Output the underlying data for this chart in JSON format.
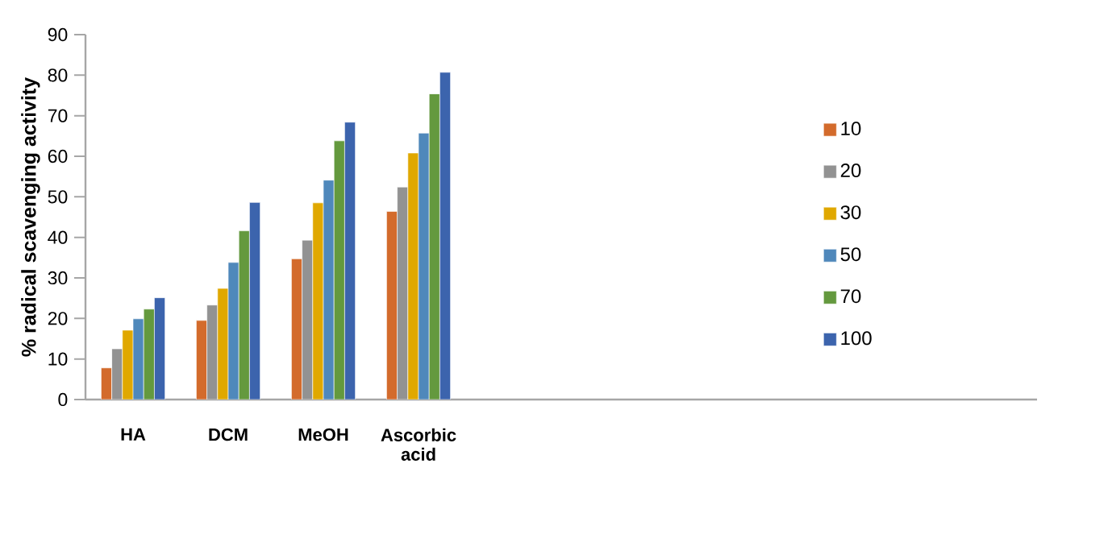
{
  "chart_data": {
    "type": "bar",
    "ylabel": "% radical scavenging activity",
    "categories": [
      "HA",
      "DCM",
      "MeOH",
      "Ascorbic acid",
      null,
      null,
      null,
      null,
      null,
      null
    ],
    "series": [
      {
        "name": "10",
        "color": "#d36b2c",
        "values": [
          7.8,
          19.5,
          34.7,
          46.4,
          null,
          null,
          null,
          null,
          null,
          null
        ]
      },
      {
        "name": "20",
        "color": "#929292",
        "values": [
          12.5,
          23.3,
          39.3,
          52.4,
          null,
          null,
          null,
          null,
          null,
          null
        ]
      },
      {
        "name": "30",
        "color": "#e0a800",
        "values": [
          17.1,
          27.4,
          48.5,
          60.8,
          null,
          null,
          null,
          null,
          null,
          null
        ]
      },
      {
        "name": "50",
        "color": "#4f88bb",
        "values": [
          19.9,
          33.8,
          54.1,
          65.7,
          null,
          null,
          null,
          null,
          null,
          null
        ]
      },
      {
        "name": "70",
        "color": "#64993e",
        "values": [
          22.3,
          41.6,
          63.8,
          75.4,
          null,
          null,
          null,
          null,
          null,
          null
        ]
      },
      {
        "name": "100",
        "color": "#3c64ad",
        "values": [
          25.1,
          48.6,
          68.4,
          80.7,
          null,
          null,
          null,
          null,
          null,
          null
        ]
      }
    ],
    "ylim": [
      0,
      90
    ],
    "yticks": [
      0,
      10,
      20,
      30,
      40,
      50,
      60,
      70,
      80,
      90
    ],
    "grid": false,
    "legend": "right"
  }
}
